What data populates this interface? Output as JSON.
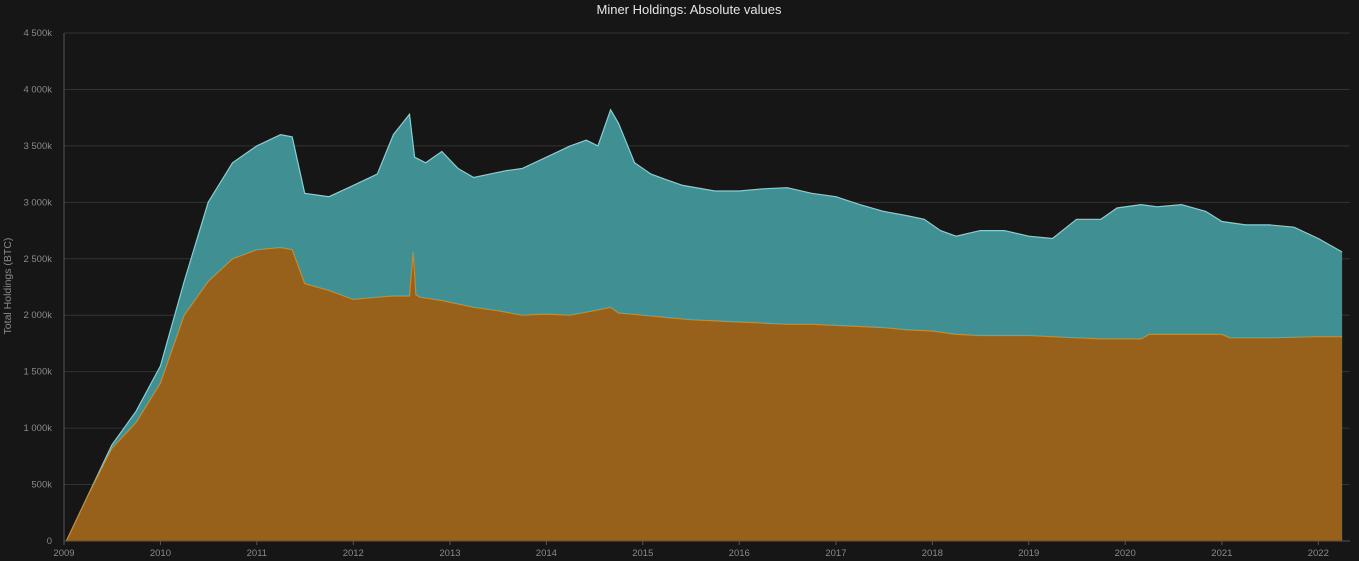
{
  "chart_data": {
    "type": "area",
    "title": "Miner Holdings: Absolute values",
    "xlabel": "",
    "ylabel": "Total Holdings (BTC)",
    "ylim": [
      0,
      4500000
    ],
    "xlim": [
      "2009-01-01",
      "2022-05-01"
    ],
    "grid": true,
    "y_ticks": [
      0,
      500000,
      1000000,
      1500000,
      2000000,
      2500000,
      3000000,
      3500000,
      4000000,
      4500000
    ],
    "y_tick_labels": [
      "0",
      "500k",
      "1 000k",
      "1 500k",
      "2 000k",
      "2 500k",
      "3 000k",
      "3 500k",
      "4 000k",
      "4 500k"
    ],
    "x_ticks": [
      "2009-01-01",
      "2010-01-01",
      "2011-01-01",
      "2012-01-01",
      "2013-01-01",
      "2014-01-01",
      "2015-01-01",
      "2016-01-01",
      "2017-01-01",
      "2018-01-01",
      "2019-01-01",
      "2020-01-01",
      "2021-01-01",
      "2022-01-01"
    ],
    "x_tick_labels": [
      "2009",
      "2010",
      "2011",
      "2012",
      "2013",
      "2014",
      "2015",
      "2016",
      "2017",
      "2018",
      "2019",
      "2020",
      "2021",
      "2022"
    ],
    "colors": {
      "total": "#3f8f93",
      "total_line": "#7fd3d8",
      "miners": "#97601b",
      "miners_line": "#c88a2e"
    },
    "series": [
      {
        "key": "total",
        "x": [
          "2009-01-10",
          "2009-04-01",
          "2009-07-01",
          "2009-10-01",
          "2010-01-01",
          "2010-04-01",
          "2010-07-01",
          "2010-10-01",
          "2011-01-01",
          "2011-04-01",
          "2011-05-15",
          "2011-07-01",
          "2011-10-01",
          "2012-01-01",
          "2012-04-01",
          "2012-06-01",
          "2012-08-01",
          "2012-08-20",
          "2012-10-01",
          "2012-12-01",
          "2013-02-01",
          "2013-04-01",
          "2013-06-01",
          "2013-08-01",
          "2013-10-01",
          "2014-01-01",
          "2014-04-01",
          "2014-06-01",
          "2014-07-15",
          "2014-09-01",
          "2014-10-01",
          "2014-12-01",
          "2015-02-01",
          "2015-04-01",
          "2015-06-01",
          "2015-10-01",
          "2016-01-01",
          "2016-04-01",
          "2016-07-01",
          "2016-10-01",
          "2017-01-01",
          "2017-04-01",
          "2017-07-01",
          "2017-10-01",
          "2017-12-01",
          "2018-02-01",
          "2018-04-01",
          "2018-07-01",
          "2018-10-01",
          "2019-01-01",
          "2019-04-01",
          "2019-07-01",
          "2019-10-01",
          "2019-12-01",
          "2020-03-01",
          "2020-05-01",
          "2020-08-01",
          "2020-11-01",
          "2021-01-01",
          "2021-04-01",
          "2021-07-01",
          "2021-10-01",
          "2022-01-01",
          "2022-04-01"
        ],
        "values": [
          0,
          400000,
          850000,
          1150000,
          1550000,
          2300000,
          3000000,
          3350000,
          3500000,
          3600000,
          3580000,
          3080000,
          3050000,
          3150000,
          3250000,
          3600000,
          3780000,
          3400000,
          3350000,
          3450000,
          3300000,
          3220000,
          3250000,
          3280000,
          3300000,
          3400000,
          3500000,
          3550000,
          3500000,
          3820000,
          3700000,
          3350000,
          3250000,
          3200000,
          3150000,
          3100000,
          3100000,
          3120000,
          3130000,
          3080000,
          3050000,
          2980000,
          2920000,
          2880000,
          2850000,
          2750000,
          2700000,
          2750000,
          2750000,
          2700000,
          2680000,
          2850000,
          2850000,
          2950000,
          2980000,
          2960000,
          2980000,
          2920000,
          2830000,
          2800000,
          2800000,
          2780000,
          2680000,
          2560000
        ]
      },
      {
        "key": "miners",
        "x": [
          "2009-01-10",
          "2009-04-01",
          "2009-07-01",
          "2009-10-01",
          "2010-01-01",
          "2010-04-01",
          "2010-07-01",
          "2010-10-01",
          "2011-01-01",
          "2011-04-01",
          "2011-05-15",
          "2011-07-01",
          "2011-10-01",
          "2012-01-01",
          "2012-04-01",
          "2012-06-01",
          "2012-08-01",
          "2012-08-15",
          "2012-08-25",
          "2012-09-10",
          "2012-12-01",
          "2013-04-01",
          "2013-07-01",
          "2013-10-01",
          "2014-01-01",
          "2014-04-01",
          "2014-07-01",
          "2014-09-01",
          "2014-10-01",
          "2015-01-01",
          "2015-04-01",
          "2015-07-01",
          "2015-10-01",
          "2016-01-01",
          "2016-04-01",
          "2016-07-01",
          "2016-10-01",
          "2017-01-01",
          "2017-04-01",
          "2017-07-01",
          "2017-10-01",
          "2018-01-01",
          "2018-04-01",
          "2018-07-01",
          "2018-10-01",
          "2019-01-01",
          "2019-04-01",
          "2019-07-01",
          "2019-10-01",
          "2020-01-01",
          "2020-03-01",
          "2020-04-01",
          "2020-07-01",
          "2020-10-01",
          "2021-01-01",
          "2021-02-01",
          "2021-07-01",
          "2022-01-01",
          "2022-04-01"
        ],
        "values": [
          0,
          400000,
          820000,
          1050000,
          1400000,
          2000000,
          2300000,
          2500000,
          2580000,
          2600000,
          2580000,
          2280000,
          2220000,
          2140000,
          2160000,
          2170000,
          2170000,
          2560000,
          2180000,
          2160000,
          2130000,
          2070000,
          2040000,
          2000000,
          2010000,
          2000000,
          2040000,
          2070000,
          2020000,
          2000000,
          1980000,
          1960000,
          1950000,
          1940000,
          1930000,
          1920000,
          1920000,
          1910000,
          1900000,
          1890000,
          1870000,
          1860000,
          1830000,
          1820000,
          1820000,
          1820000,
          1810000,
          1800000,
          1790000,
          1790000,
          1790000,
          1830000,
          1830000,
          1830000,
          1830000,
          1800000,
          1800000,
          1810000,
          1810000
        ]
      }
    ]
  }
}
